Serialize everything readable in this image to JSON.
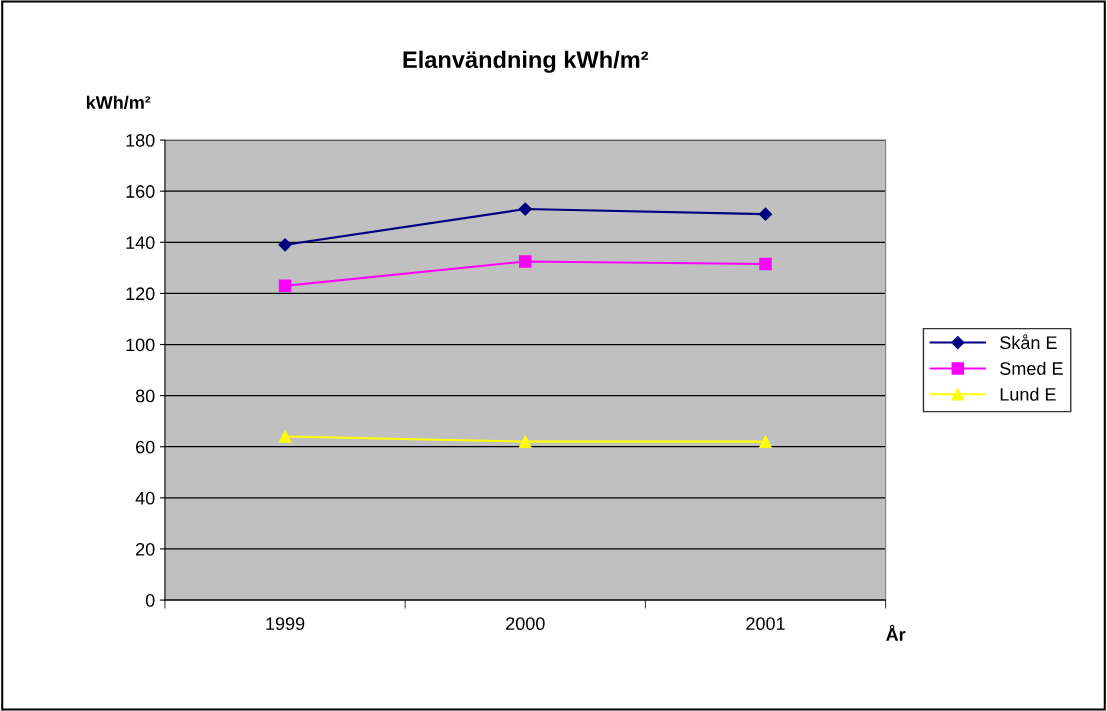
{
  "chart_data": {
    "type": "line",
    "title": "Elanvändning kWh/m²",
    "ylabel": "kWh/m²",
    "xlabel": "År",
    "categories": [
      "1999",
      "2000",
      "2001"
    ],
    "series": [
      {
        "name": "Skån E",
        "color": "#000080",
        "marker": "diamond",
        "values": [
          139,
          153,
          151
        ]
      },
      {
        "name": "Smed E",
        "color": "#ff00ff",
        "marker": "square",
        "values": [
          123,
          132.5,
          131.5
        ]
      },
      {
        "name": "Lund E",
        "color": "#ffff00",
        "marker": "triangle",
        "values": [
          64,
          62,
          62
        ]
      }
    ],
    "ylim": [
      0,
      180
    ],
    "yticks": [
      0,
      20,
      40,
      60,
      80,
      100,
      120,
      140,
      160,
      180
    ],
    "grid": "y",
    "legend": "right"
  }
}
